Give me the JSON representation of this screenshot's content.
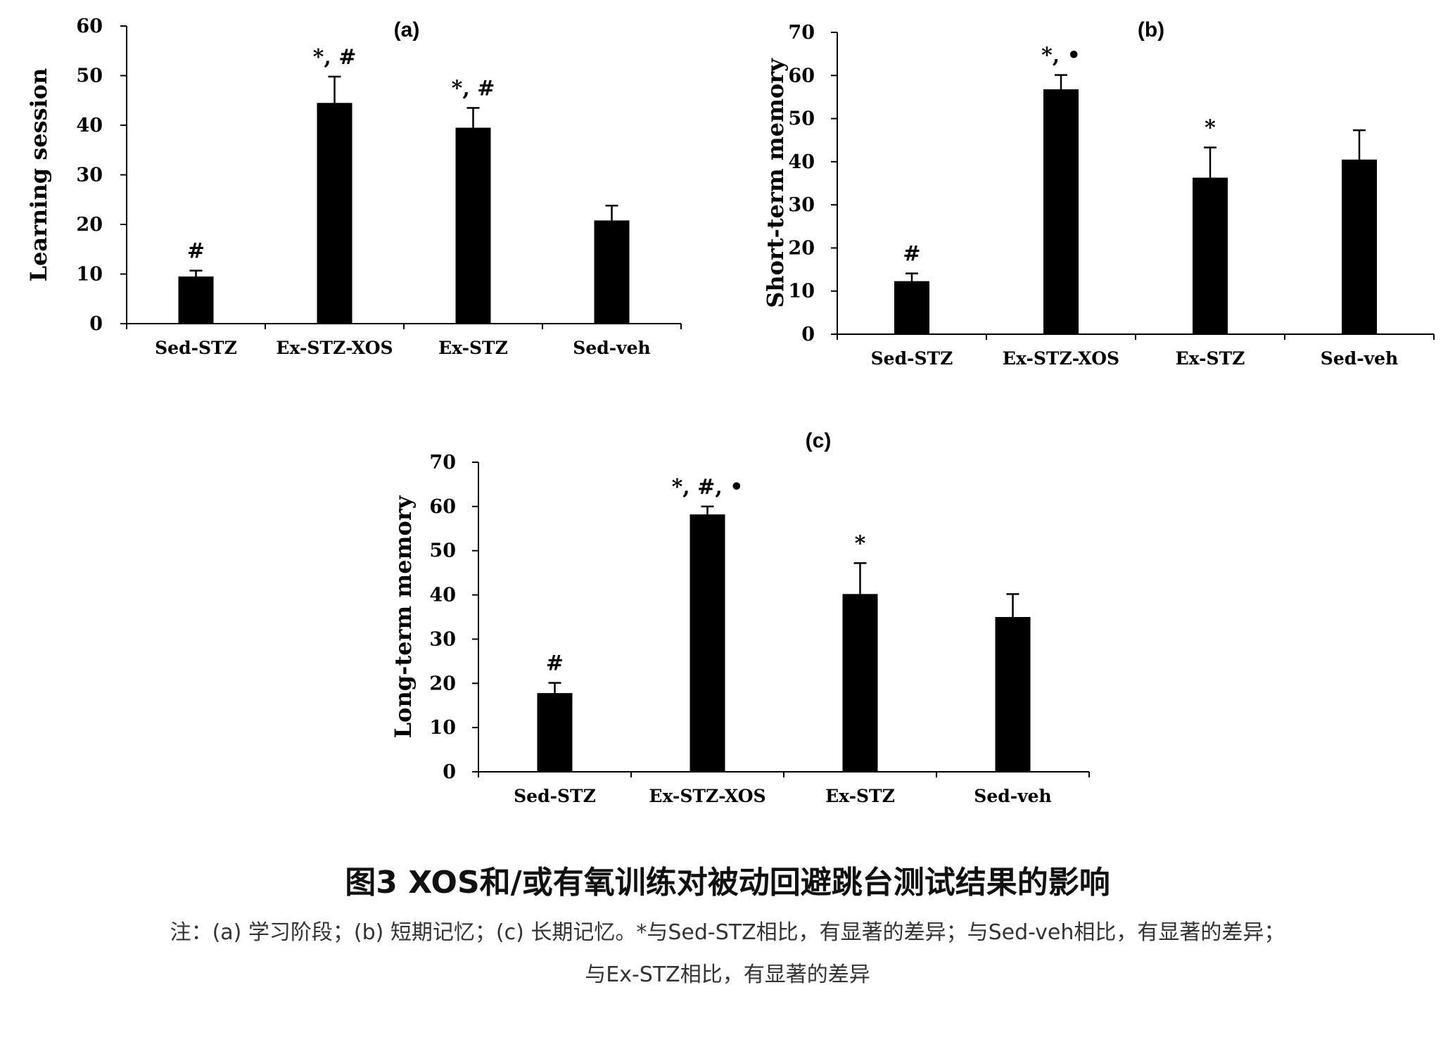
{
  "chart_data": [
    {
      "type": "bar",
      "title": "(a)",
      "ylabel": "Learning session",
      "xlabel": "",
      "categories": [
        "Sed-STZ",
        "Ex-STZ-XOS",
        "Ex-STZ",
        "Sed-veh"
      ],
      "values": [
        9.5,
        44.5,
        39.5,
        20.8
      ],
      "errors": [
        1.2,
        5.3,
        4.0,
        3.0
      ],
      "annotations": [
        "#",
        "*, #",
        "*, #",
        ""
      ],
      "ylim": [
        0,
        60
      ],
      "yticks": [
        0,
        10,
        20,
        30,
        40,
        50,
        60
      ],
      "grid": false
    },
    {
      "type": "bar",
      "title": "(b)",
      "ylabel": "Short-term memory",
      "xlabel": "",
      "categories": [
        "Sed-STZ",
        "Ex-STZ-XOS",
        "Ex-STZ",
        "Sed-veh"
      ],
      "values": [
        12.3,
        56.8,
        36.3,
        40.5
      ],
      "errors": [
        1.8,
        3.3,
        7.0,
        6.8
      ],
      "annotations": [
        "#",
        "*, •",
        "*",
        ""
      ],
      "ylim": [
        0,
        70
      ],
      "yticks": [
        0,
        10,
        20,
        30,
        40,
        50,
        60,
        70
      ],
      "grid": false
    },
    {
      "type": "bar",
      "title": "(c)",
      "ylabel": "Long-term memory",
      "xlabel": "",
      "categories": [
        "Sed-STZ",
        "Ex-STZ-XOS",
        "Ex-STZ",
        "Sed-veh"
      ],
      "values": [
        17.8,
        58.2,
        40.2,
        35.0
      ],
      "errors": [
        2.3,
        1.8,
        7.0,
        5.2
      ],
      "annotations": [
        "#",
        "*, #, •",
        "*",
        ""
      ],
      "ylim": [
        0,
        70
      ],
      "yticks": [
        0,
        10,
        20,
        30,
        40,
        50,
        60,
        70
      ],
      "grid": false
    }
  ],
  "bar_color": "#000000",
  "caption": {
    "title": "图3 XOS和/或有氧训练对被动回避跳台测试结果的影响",
    "note_line1": "注：(a) 学习阶段；(b) 短期记忆；(c) 长期记忆。*与Sed-STZ相比，有显著的差异；与Sed-veh相比，有显著的差异；",
    "note_line2": "与Ex-STZ相比，有显著的差异"
  }
}
